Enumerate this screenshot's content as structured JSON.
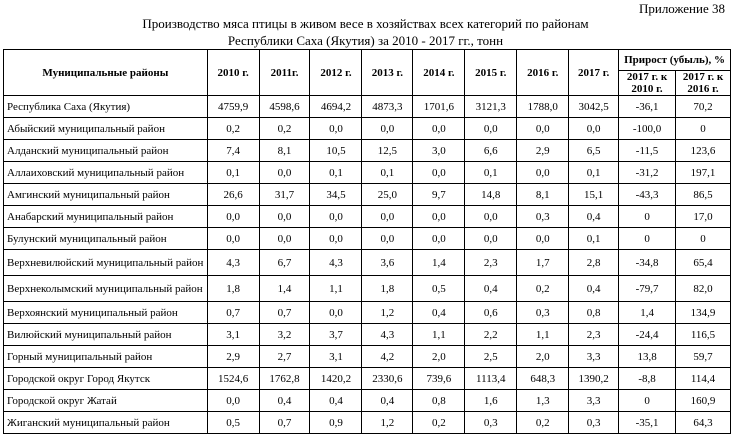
{
  "appendix": "Приложение  38",
  "title_line1": "Производство мяса птицы в живом весе в хозяйствах всех категорий по районам",
  "title_line2": "Республики Саха (Якутия) за 2010 - 2017 гг., тонн",
  "headers": {
    "district": "Муниципальные районы",
    "years": [
      "2010 г.",
      "2011г.",
      "2012 г.",
      "2013 г.",
      "2014 г.",
      "2015 г.",
      "2016 г.",
      "2017 г."
    ],
    "growth": "Прирост (убыль), %",
    "growth_sub": [
      "2017 г. к 2010 г.",
      "2017 г. к 2016 г."
    ]
  },
  "rows": [
    {
      "name": "Республика Саха (Якутия)",
      "values": [
        "4759,9",
        "4598,6",
        "4694,2",
        "4873,3",
        "1701,6",
        "3121,3",
        "1788,0",
        "3042,5",
        "-36,1",
        "70,2"
      ]
    },
    {
      "name": "Абыйский муниципальный район",
      "values": [
        "0,2",
        "0,2",
        "0,0",
        "0,0",
        "0,0",
        "0,0",
        "0,0",
        "0,0",
        "-100,0",
        "0"
      ]
    },
    {
      "name": "Алданский муниципальный район",
      "values": [
        "7,4",
        "8,1",
        "10,5",
        "12,5",
        "3,0",
        "6,6",
        "2,9",
        "6,5",
        "-11,5",
        "123,6"
      ]
    },
    {
      "name": "Аллаиховский муниципальный район",
      "values": [
        "0,1",
        "0,0",
        "0,1",
        "0,1",
        "0,0",
        "0,1",
        "0,0",
        "0,1",
        "-31,2",
        "197,1"
      ]
    },
    {
      "name": "Амгинский муниципальный район",
      "values": [
        "26,6",
        "31,7",
        "34,5",
        "25,0",
        "9,7",
        "14,8",
        "8,1",
        "15,1",
        "-43,3",
        "86,5"
      ]
    },
    {
      "name": "Анабарский муниципальный район",
      "values": [
        "0,0",
        "0,0",
        "0,0",
        "0,0",
        "0,0",
        "0,0",
        "0,3",
        "0,4",
        "0",
        "17,0"
      ]
    },
    {
      "name": "Булунский муниципальный район",
      "values": [
        "0,0",
        "0,0",
        "0,0",
        "0,0",
        "0,0",
        "0,0",
        "0,0",
        "0,1",
        "0",
        "0"
      ]
    },
    {
      "name": "Верхневилюйский муниципальный район",
      "values": [
        "4,3",
        "6,7",
        "4,3",
        "3,6",
        "1,4",
        "2,3",
        "1,7",
        "2,8",
        "-34,8",
        "65,4"
      ],
      "tall": true
    },
    {
      "name": "Верхнеколымский муниципальный район",
      "values": [
        "1,8",
        "1,4",
        "1,1",
        "1,8",
        "0,5",
        "0,4",
        "0,2",
        "0,4",
        "-79,7",
        "82,0"
      ],
      "tall": true
    },
    {
      "name": "Верхоянский муниципальный район",
      "values": [
        "0,7",
        "0,7",
        "0,0",
        "1,2",
        "0,4",
        "0,6",
        "0,3",
        "0,8",
        "1,4",
        "134,9"
      ]
    },
    {
      "name": "Вилюйский муниципальный район",
      "values": [
        "3,1",
        "3,2",
        "3,7",
        "4,3",
        "1,1",
        "2,2",
        "1,1",
        "2,3",
        "-24,4",
        "116,5"
      ]
    },
    {
      "name": "Горный муниципальный район",
      "values": [
        "2,9",
        "2,7",
        "3,1",
        "4,2",
        "2,0",
        "2,5",
        "2,0",
        "3,3",
        "13,8",
        "59,7"
      ]
    },
    {
      "name": "Городской округ Город Якутск",
      "values": [
        "1524,6",
        "1762,8",
        "1420,2",
        "2330,6",
        "739,6",
        "1113,4",
        "648,3",
        "1390,2",
        "-8,8",
        "114,4"
      ]
    },
    {
      "name": "Городской округ Жатай",
      "values": [
        "0,0",
        "0,4",
        "0,4",
        "0,4",
        "0,8",
        "1,6",
        "1,3",
        "3,3",
        "0",
        "160,9"
      ]
    },
    {
      "name": "Жиганский муниципальный район",
      "values": [
        "0,5",
        "0,7",
        "0,9",
        "1,2",
        "0,2",
        "0,3",
        "0,2",
        "0,3",
        "-35,1",
        "64,3"
      ]
    }
  ]
}
